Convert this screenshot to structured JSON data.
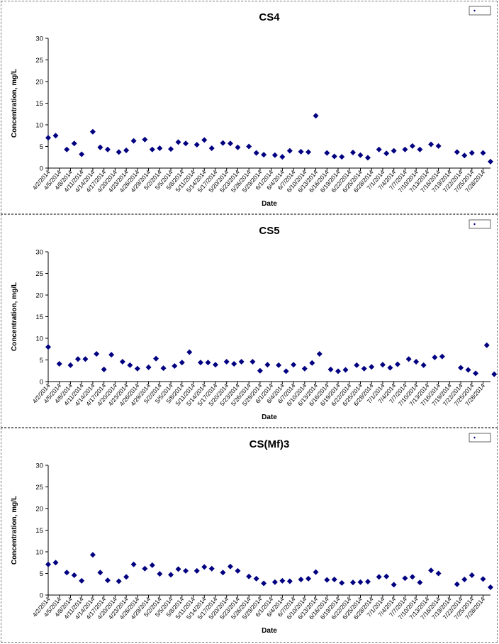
{
  "chart_data": [
    {
      "type": "scatter",
      "title": "CS4",
      "xlabel": "Date",
      "ylabel": "Concentration, mg/L",
      "ylim": [
        0,
        30
      ],
      "yticks": [
        0,
        5,
        10,
        15,
        20,
        25,
        30
      ],
      "xlim": [
        "4/2/2014",
        "7/30/2014"
      ],
      "xtick_labels": [
        "4/2/2014",
        "4/5/2014",
        "4/8/2014",
        "4/11/2014",
        "4/14/2014",
        "4/17/2014",
        "4/20/2014",
        "4/23/2014",
        "4/26/2014",
        "4/29/2014",
        "5/2/2014",
        "5/5/2014",
        "5/8/2014",
        "5/11/2014",
        "5/14/2014",
        "5/17/2014",
        "5/20/2014",
        "5/23/2014",
        "5/26/2014",
        "5/29/2014",
        "6/1/2014",
        "6/4/2014",
        "6/7/2014",
        "6/10/2014",
        "6/13/2014",
        "6/16/2014",
        "6/19/2014",
        "6/22/2014",
        "6/25/2014",
        "6/28/2014",
        "7/1/2014",
        "7/4/2014",
        "7/7/2014",
        "7/10/2014",
        "7/13/2014",
        "7/16/2014",
        "7/19/2014",
        "7/22/2014",
        "7/25/2014",
        "7/28/2014"
      ],
      "grid": false,
      "legend": {
        "position": "top-right",
        "entries": [
          ""
        ]
      },
      "marker_color": "#000080",
      "points": [
        {
          "x": "4/2/2014",
          "y": 7.0
        },
        {
          "x": "4/4/2014",
          "y": 7.5
        },
        {
          "x": "4/7/2014",
          "y": 4.3
        },
        {
          "x": "4/9/2014",
          "y": 5.7
        },
        {
          "x": "4/11/2014",
          "y": 3.2
        },
        {
          "x": "4/14/2014",
          "y": 8.4
        },
        {
          "x": "4/16/2014",
          "y": 4.8
        },
        {
          "x": "4/18/2014",
          "y": 4.3
        },
        {
          "x": "4/21/2014",
          "y": 3.7
        },
        {
          "x": "4/23/2014",
          "y": 4.1
        },
        {
          "x": "4/25/2014",
          "y": 6.3
        },
        {
          "x": "4/28/2014",
          "y": 6.6
        },
        {
          "x": "4/30/2014",
          "y": 4.3
        },
        {
          "x": "5/2/2014",
          "y": 4.6
        },
        {
          "x": "5/5/2014",
          "y": 4.4
        },
        {
          "x": "5/7/2014",
          "y": 6.0
        },
        {
          "x": "5/9/2014",
          "y": 5.7
        },
        {
          "x": "5/12/2014",
          "y": 5.4
        },
        {
          "x": "5/14/2014",
          "y": 6.5
        },
        {
          "x": "5/16/2014",
          "y": 4.6
        },
        {
          "x": "5/19/2014",
          "y": 5.8
        },
        {
          "x": "5/21/2014",
          "y": 5.7
        },
        {
          "x": "5/23/2014",
          "y": 4.8
        },
        {
          "x": "5/26/2014",
          "y": 5.0
        },
        {
          "x": "5/28/2014",
          "y": 3.5
        },
        {
          "x": "5/30/2014",
          "y": 3.1
        },
        {
          "x": "6/2/2014",
          "y": 3.0
        },
        {
          "x": "6/4/2014",
          "y": 2.6
        },
        {
          "x": "6/6/2014",
          "y": 4.0
        },
        {
          "x": "6/9/2014",
          "y": 3.8
        },
        {
          "x": "6/11/2014",
          "y": 3.7
        },
        {
          "x": "6/13/2014",
          "y": 12.1
        },
        {
          "x": "6/16/2014",
          "y": 3.5
        },
        {
          "x": "6/18/2014",
          "y": 2.7
        },
        {
          "x": "6/20/2014",
          "y": 2.6
        },
        {
          "x": "6/23/2014",
          "y": 3.6
        },
        {
          "x": "6/25/2014",
          "y": 3.0
        },
        {
          "x": "6/27/2014",
          "y": 2.4
        },
        {
          "x": "6/30/2014",
          "y": 4.3
        },
        {
          "x": "7/2/2014",
          "y": 3.4
        },
        {
          "x": "7/4/2014",
          "y": 4.0
        },
        {
          "x": "7/7/2014",
          "y": 4.3
        },
        {
          "x": "7/9/2014",
          "y": 5.1
        },
        {
          "x": "7/11/2014",
          "y": 4.3
        },
        {
          "x": "7/14/2014",
          "y": 5.5
        },
        {
          "x": "7/16/2014",
          "y": 5.1
        },
        {
          "x": "7/21/2014",
          "y": 3.7
        },
        {
          "x": "7/23/2014",
          "y": 2.9
        },
        {
          "x": "7/25/2014",
          "y": 3.5
        },
        {
          "x": "7/28/2014",
          "y": 3.5
        },
        {
          "x": "7/30/2014",
          "y": 1.5
        }
      ]
    },
    {
      "type": "scatter",
      "title": "CS5",
      "xlabel": "Date",
      "ylabel": "Concentration, mg/L",
      "ylim": [
        0,
        30
      ],
      "yticks": [
        0,
        5,
        10,
        15,
        20,
        25,
        30
      ],
      "xlim": [
        "4/2/2014",
        "7/30/2014"
      ],
      "xtick_labels": [
        "4/2/2014",
        "4/5/2014",
        "4/8/2014",
        "4/11/2014",
        "4/14/2014",
        "4/17/2014",
        "4/20/2014",
        "4/23/2014",
        "4/26/2014",
        "4/29/2014",
        "5/2/2014",
        "5/5/2014",
        "5/8/2014",
        "5/11/2014",
        "5/14/2014",
        "5/17/2014",
        "5/20/2014",
        "5/23/2014",
        "5/26/2014",
        "5/29/2014",
        "6/1/2014",
        "6/4/2014",
        "6/7/2014",
        "6/10/2014",
        "6/13/2014",
        "6/16/2014",
        "6/19/2014",
        "6/22/2014",
        "6/25/2014",
        "6/28/2014",
        "7/1/2014",
        "7/4/2014",
        "7/7/2014",
        "7/10/2014",
        "7/13/2014",
        "7/16/2014",
        "7/19/2014",
        "7/22/2014",
        "7/25/2014",
        "7/28/2014"
      ],
      "grid": false,
      "legend": {
        "position": "top-right",
        "entries": [
          ""
        ]
      },
      "marker_color": "#000080",
      "points": [
        {
          "x": "4/2/2014",
          "y": 8.0
        },
        {
          "x": "4/5/2014",
          "y": 4.1
        },
        {
          "x": "4/8/2014",
          "y": 3.8
        },
        {
          "x": "4/10/2014",
          "y": 5.2
        },
        {
          "x": "4/12/2014",
          "y": 5.2
        },
        {
          "x": "4/15/2014",
          "y": 6.4
        },
        {
          "x": "4/17/2014",
          "y": 2.8
        },
        {
          "x": "4/19/2014",
          "y": 6.2
        },
        {
          "x": "4/22/2014",
          "y": 4.6
        },
        {
          "x": "4/24/2014",
          "y": 3.8
        },
        {
          "x": "4/26/2014",
          "y": 3.0
        },
        {
          "x": "4/29/2014",
          "y": 3.3
        },
        {
          "x": "5/1/2014",
          "y": 5.3
        },
        {
          "x": "5/3/2014",
          "y": 3.1
        },
        {
          "x": "5/6/2014",
          "y": 3.6
        },
        {
          "x": "5/8/2014",
          "y": 4.4
        },
        {
          "x": "5/10/2014",
          "y": 6.8
        },
        {
          "x": "5/13/2014",
          "y": 4.4
        },
        {
          "x": "5/15/2014",
          "y": 4.4
        },
        {
          "x": "5/17/2014",
          "y": 3.9
        },
        {
          "x": "5/20/2014",
          "y": 4.6
        },
        {
          "x": "5/22/2014",
          "y": 4.1
        },
        {
          "x": "5/24/2014",
          "y": 4.6
        },
        {
          "x": "5/27/2014",
          "y": 4.6
        },
        {
          "x": "5/29/2014",
          "y": 2.5
        },
        {
          "x": "5/31/2014",
          "y": 3.9
        },
        {
          "x": "6/3/2014",
          "y": 3.8
        },
        {
          "x": "6/5/2014",
          "y": 2.4
        },
        {
          "x": "6/7/2014",
          "y": 3.9
        },
        {
          "x": "6/10/2014",
          "y": 3.0
        },
        {
          "x": "6/12/2014",
          "y": 4.3
        },
        {
          "x": "6/14/2014",
          "y": 6.4
        },
        {
          "x": "6/17/2014",
          "y": 2.8
        },
        {
          "x": "6/19/2014",
          "y": 2.4
        },
        {
          "x": "6/21/2014",
          "y": 2.7
        },
        {
          "x": "6/24/2014",
          "y": 3.8
        },
        {
          "x": "6/26/2014",
          "y": 3.0
        },
        {
          "x": "6/28/2014",
          "y": 3.4
        },
        {
          "x": "7/1/2014",
          "y": 3.9
        },
        {
          "x": "7/3/2014",
          "y": 3.2
        },
        {
          "x": "7/5/2014",
          "y": 4.0
        },
        {
          "x": "7/8/2014",
          "y": 5.2
        },
        {
          "x": "7/10/2014",
          "y": 4.6
        },
        {
          "x": "7/12/2014",
          "y": 3.8
        },
        {
          "x": "7/15/2014",
          "y": 5.6
        },
        {
          "x": "7/17/2014",
          "y": 5.8
        },
        {
          "x": "7/22/2014",
          "y": 3.2
        },
        {
          "x": "7/24/2014",
          "y": 2.7
        },
        {
          "x": "7/26/2014",
          "y": 1.9
        },
        {
          "x": "7/29/2014",
          "y": 8.4
        },
        {
          "x": "7/31/2014",
          "y": 1.7
        }
      ]
    },
    {
      "type": "scatter",
      "title": "CS(Mf)3",
      "xlabel": "Date",
      "ylabel": "Concentration, mg/L",
      "ylim": [
        0,
        30
      ],
      "yticks": [
        0,
        5,
        10,
        15,
        20,
        25,
        30
      ],
      "xlim": [
        "4/2/2014",
        "7/30/2014"
      ],
      "xtick_labels": [
        "4/2/2014",
        "4/5/2014",
        "4/8/2014",
        "4/11/2014",
        "4/14/2014",
        "4/17/2014",
        "4/20/2014",
        "4/23/2014",
        "4/26/2014",
        "4/29/2014",
        "5/2/2014",
        "5/5/2014",
        "5/8/2014",
        "5/11/2014",
        "5/14/2014",
        "5/17/2014",
        "5/20/2014",
        "5/23/2014",
        "5/26/2014",
        "5/29/2014",
        "6/1/2014",
        "6/4/2014",
        "6/7/2014",
        "6/10/2014",
        "6/13/2014",
        "6/16/2014",
        "6/19/2014",
        "6/22/2014",
        "6/25/2014",
        "6/28/2014",
        "7/1/2014",
        "7/4/2014",
        "7/7/2014",
        "7/10/2014",
        "7/13/2014",
        "7/16/2014",
        "7/19/2014",
        "7/22/2014",
        "7/25/2014",
        "7/28/2014"
      ],
      "grid": false,
      "legend": {
        "position": "top-right",
        "entries": [
          ""
        ]
      },
      "marker_color": "#000080",
      "points": [
        {
          "x": "4/2/2014",
          "y": 7.1
        },
        {
          "x": "4/4/2014",
          "y": 7.5
        },
        {
          "x": "4/7/2014",
          "y": 5.2
        },
        {
          "x": "4/9/2014",
          "y": 4.6
        },
        {
          "x": "4/11/2014",
          "y": 3.3
        },
        {
          "x": "4/14/2014",
          "y": 9.3
        },
        {
          "x": "4/16/2014",
          "y": 5.2
        },
        {
          "x": "4/18/2014",
          "y": 3.4
        },
        {
          "x": "4/21/2014",
          "y": 3.2
        },
        {
          "x": "4/23/2014",
          "y": 4.2
        },
        {
          "x": "4/25/2014",
          "y": 7.1
        },
        {
          "x": "4/28/2014",
          "y": 6.1
        },
        {
          "x": "4/30/2014",
          "y": 6.9
        },
        {
          "x": "5/2/2014",
          "y": 4.9
        },
        {
          "x": "5/5/2014",
          "y": 4.7
        },
        {
          "x": "5/7/2014",
          "y": 6.0
        },
        {
          "x": "5/9/2014",
          "y": 5.6
        },
        {
          "x": "5/12/2014",
          "y": 5.6
        },
        {
          "x": "5/14/2014",
          "y": 6.5
        },
        {
          "x": "5/16/2014",
          "y": 6.1
        },
        {
          "x": "5/19/2014",
          "y": 5.2
        },
        {
          "x": "5/21/2014",
          "y": 6.6
        },
        {
          "x": "5/23/2014",
          "y": 5.6
        },
        {
          "x": "5/26/2014",
          "y": 4.3
        },
        {
          "x": "5/28/2014",
          "y": 3.8
        },
        {
          "x": "5/30/2014",
          "y": 2.7
        },
        {
          "x": "6/2/2014",
          "y": 3.0
        },
        {
          "x": "6/4/2014",
          "y": 3.3
        },
        {
          "x": "6/6/2014",
          "y": 3.2
        },
        {
          "x": "6/9/2014",
          "y": 3.6
        },
        {
          "x": "6/11/2014",
          "y": 3.8
        },
        {
          "x": "6/13/2014",
          "y": 5.3
        },
        {
          "x": "6/16/2014",
          "y": 3.5
        },
        {
          "x": "6/18/2014",
          "y": 3.6
        },
        {
          "x": "6/20/2014",
          "y": 2.8
        },
        {
          "x": "6/23/2014",
          "y": 2.9
        },
        {
          "x": "6/25/2014",
          "y": 3.0
        },
        {
          "x": "6/27/2014",
          "y": 3.1
        },
        {
          "x": "6/30/2014",
          "y": 4.2
        },
        {
          "x": "7/2/2014",
          "y": 4.3
        },
        {
          "x": "7/4/2014",
          "y": 2.4
        },
        {
          "x": "7/7/2014",
          "y": 3.9
        },
        {
          "x": "7/9/2014",
          "y": 4.2
        },
        {
          "x": "7/11/2014",
          "y": 2.9
        },
        {
          "x": "7/14/2014",
          "y": 5.7
        },
        {
          "x": "7/16/2014",
          "y": 5.0
        },
        {
          "x": "7/21/2014",
          "y": 2.5
        },
        {
          "x": "7/23/2014",
          "y": 3.6
        },
        {
          "x": "7/25/2014",
          "y": 4.6
        },
        {
          "x": "7/28/2014",
          "y": 3.7
        },
        {
          "x": "7/30/2014",
          "y": 1.8
        }
      ]
    }
  ]
}
